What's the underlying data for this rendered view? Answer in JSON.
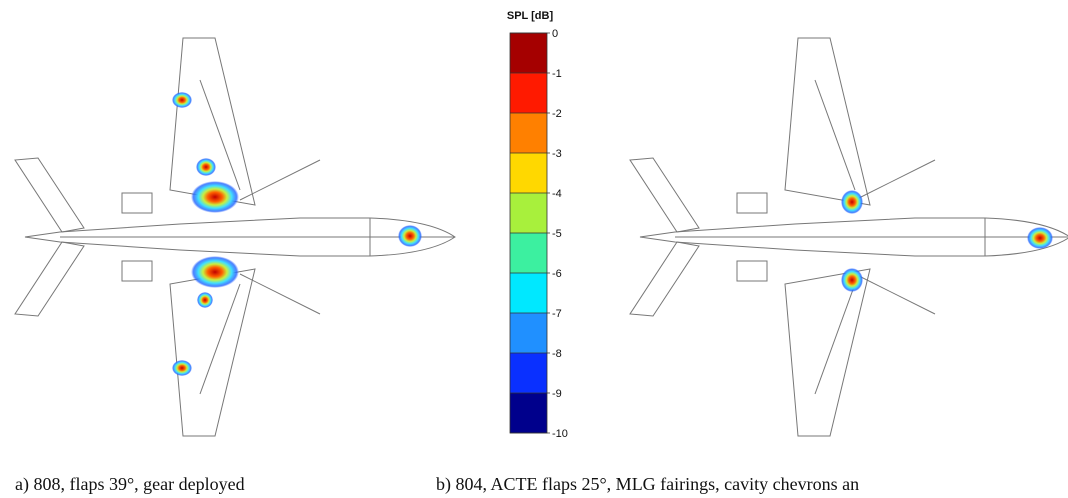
{
  "colorbar": {
    "title": "SPL [dB]",
    "range": [
      -10,
      0
    ],
    "ticks": [
      0,
      -1,
      -2,
      -3,
      -4,
      -5,
      -6,
      -7,
      -8,
      -9,
      -10
    ],
    "colors": [
      "#a50000",
      "#ff1a00",
      "#ff8000",
      "#ffd800",
      "#a8f03c",
      "#3cf0a0",
      "#00e8ff",
      "#2090ff",
      "#0a30ff",
      "#00008c"
    ]
  },
  "panels": [
    {
      "caption": "a) 808, flaps 39°, gear deployed"
    },
    {
      "caption": "b) 804, ACTE flaps 25°, MLG fairings, cavity chevrons an"
    }
  ]
}
